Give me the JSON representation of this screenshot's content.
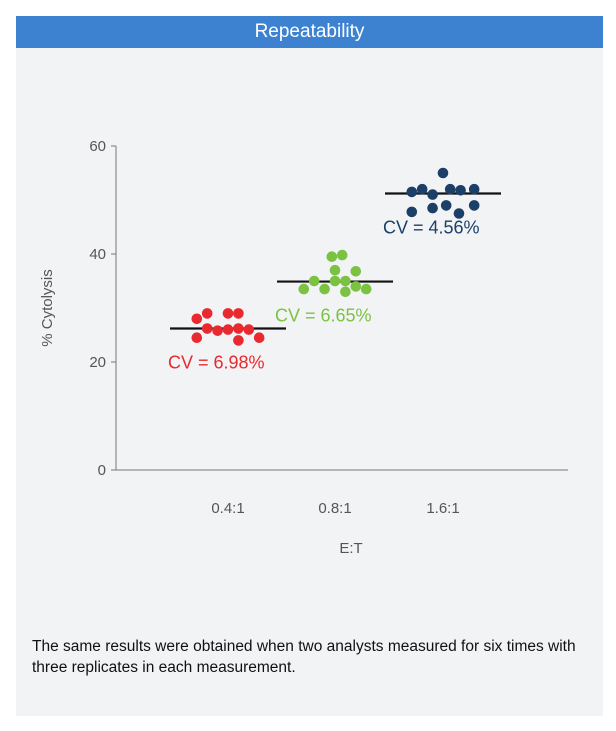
{
  "header": {
    "title": "Repeatability"
  },
  "caption": "The same results were obtained when two analysts measured for six times with three replicates in each measurement.",
  "colors": {
    "header_bg": "#3c82d1",
    "panel_bg": "#f2f3f5",
    "axis": "#777777",
    "mean_line": "#111111"
  },
  "chart_data": {
    "type": "scatter",
    "xlabel": "E:T",
    "ylabel": "% Cytolysis",
    "categories": [
      "0.4:1",
      "0.8:1",
      "1.6:1"
    ],
    "ylim": [
      0,
      60
    ],
    "yticks": [
      0,
      20,
      40,
      60
    ],
    "grid": false,
    "series": [
      {
        "category": "0.4:1",
        "color": "#e8292f",
        "mean": 26.2,
        "cv_label": "CV = 6.98%",
        "points": [
          {
            "x": -0.39,
            "y": 28.0
          },
          {
            "x": -0.39,
            "y": 24.5
          },
          {
            "x": -0.26,
            "y": 29.0
          },
          {
            "x": -0.26,
            "y": 26.2
          },
          {
            "x": -0.13,
            "y": 25.8
          },
          {
            "x": 0.0,
            "y": 29.0
          },
          {
            "x": 0.0,
            "y": 26.0
          },
          {
            "x": 0.13,
            "y": 29.0
          },
          {
            "x": 0.13,
            "y": 24.0
          },
          {
            "x": 0.13,
            "y": 26.2
          },
          {
            "x": 0.26,
            "y": 26.0
          },
          {
            "x": 0.39,
            "y": 24.5
          }
        ]
      },
      {
        "category": "0.8:1",
        "color": "#7cc242",
        "mean": 34.9,
        "cv_label": "CV = 6.65%",
        "points": [
          {
            "x": -0.39,
            "y": 33.5
          },
          {
            "x": -0.26,
            "y": 35.0
          },
          {
            "x": -0.13,
            "y": 33.5
          },
          {
            "x": -0.04,
            "y": 39.5
          },
          {
            "x": 0.0,
            "y": 37.0
          },
          {
            "x": 0.0,
            "y": 35.0
          },
          {
            "x": 0.09,
            "y": 39.8
          },
          {
            "x": 0.13,
            "y": 33.0
          },
          {
            "x": 0.13,
            "y": 35.0
          },
          {
            "x": 0.26,
            "y": 36.8
          },
          {
            "x": 0.26,
            "y": 34.0
          },
          {
            "x": 0.39,
            "y": 33.5
          }
        ]
      },
      {
        "category": "1.6:1",
        "color": "#1c3f68",
        "mean": 51.2,
        "cv_label": "CV = 4.56%",
        "points": [
          {
            "x": -0.39,
            "y": 51.5
          },
          {
            "x": -0.39,
            "y": 47.8
          },
          {
            "x": -0.26,
            "y": 52.0
          },
          {
            "x": -0.13,
            "y": 48.5
          },
          {
            "x": -0.13,
            "y": 51.0
          },
          {
            "x": 0.0,
            "y": 55.0
          },
          {
            "x": 0.04,
            "y": 49.0
          },
          {
            "x": 0.09,
            "y": 52.0
          },
          {
            "x": 0.2,
            "y": 47.5
          },
          {
            "x": 0.22,
            "y": 51.8
          },
          {
            "x": 0.39,
            "y": 52.0
          },
          {
            "x": 0.39,
            "y": 49.0
          }
        ]
      }
    ]
  }
}
